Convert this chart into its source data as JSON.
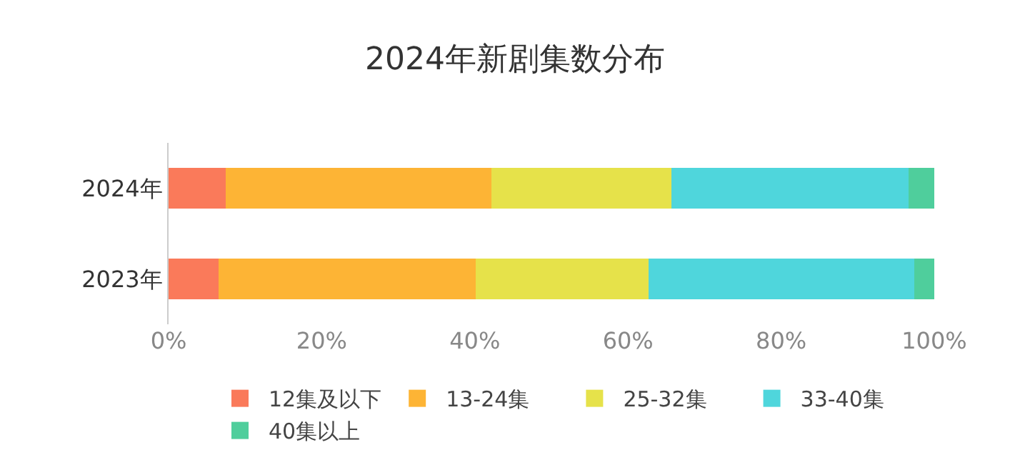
{
  "chart_data": {
    "type": "bar",
    "title": "2024年新剧集数分布",
    "orientation": "horizontal",
    "stacked": true,
    "categories": [
      "2024年",
      "2023年"
    ],
    "series": [
      {
        "name": "12集及以下",
        "color": "#fa7a5a",
        "values": [
          7.5,
          6.5
        ]
      },
      {
        "name": "13-24集",
        "color": "#fdb435",
        "values": [
          34.7,
          33.6
        ]
      },
      {
        "name": "25-32集",
        "color": "#e6e24a",
        "values": [
          23.5,
          22.6
        ]
      },
      {
        "name": "33-40集",
        "color": "#4fd6dc",
        "values": [
          30.9,
          34.7
        ]
      },
      {
        "name": "40集以上",
        "color": "#4fce9c",
        "values": [
          3.4,
          2.6
        ]
      }
    ],
    "xlim": [
      0,
      100
    ],
    "xticks": [
      {
        "value": 0,
        "label": "0%"
      },
      {
        "value": 20,
        "label": "20%"
      },
      {
        "value": 40,
        "label": "40%"
      },
      {
        "value": 60,
        "label": "60%"
      },
      {
        "value": 80,
        "label": "80%"
      },
      {
        "value": 100,
        "label": "100%"
      }
    ],
    "grid": false,
    "legend": "bottom"
  }
}
